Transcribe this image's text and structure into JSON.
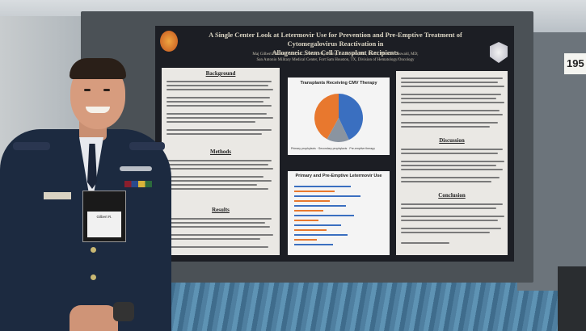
{
  "scene": {
    "booth_number": "195"
  },
  "poster": {
    "title_line1": "A Single Center Look at Letermovir Use for Prevention and Pre-Emptive Treatment of Cytomegalovirus Reactivation in",
    "title_line2": "Allogeneic Stem Cell Transplant Recipients",
    "authors": "Maj Gilbert P. Krutin, MD, MC, USAF;  Maj Jeremy B. Lee, MD, MC, USAF;  Michael Osswald, MD;",
    "affiliation": "San Antonio Military Medical Center, Fort Sam Houston, TX, Division of Hematology/Oncology",
    "sections": {
      "background": "Background",
      "methods": "Methods",
      "results": "Results",
      "discussion": "Discussion",
      "conclusion": "Conclusion"
    },
    "chart1": {
      "title": "Transplants Receiving CMV Therapy",
      "legend": [
        "Primary prophylaxis",
        "Secondary prophylaxis",
        "Pre-emptive therapy"
      ]
    },
    "chart2": {
      "title": "Primary and Pre-Emptive Letermovir Use"
    }
  },
  "person": {
    "badge_name": "Gilbert R."
  },
  "colors": {
    "pie_orange": "#e8782e",
    "pie_blue": "#3a6fc0",
    "pie_gray": "#8a94a0",
    "poster_dark": "#1c1e24",
    "uniform": "#1c2a40"
  },
  "chart_data": {
    "type": "pie",
    "title": "Transplants Receiving CMV Therapy",
    "slices": [
      {
        "name": "Primary prophylaxis",
        "value": 43
      },
      {
        "name": "Secondary prophylaxis",
        "value": 15
      },
      {
        "name": "Pre-emptive therapy",
        "value": 42
      }
    ]
  }
}
